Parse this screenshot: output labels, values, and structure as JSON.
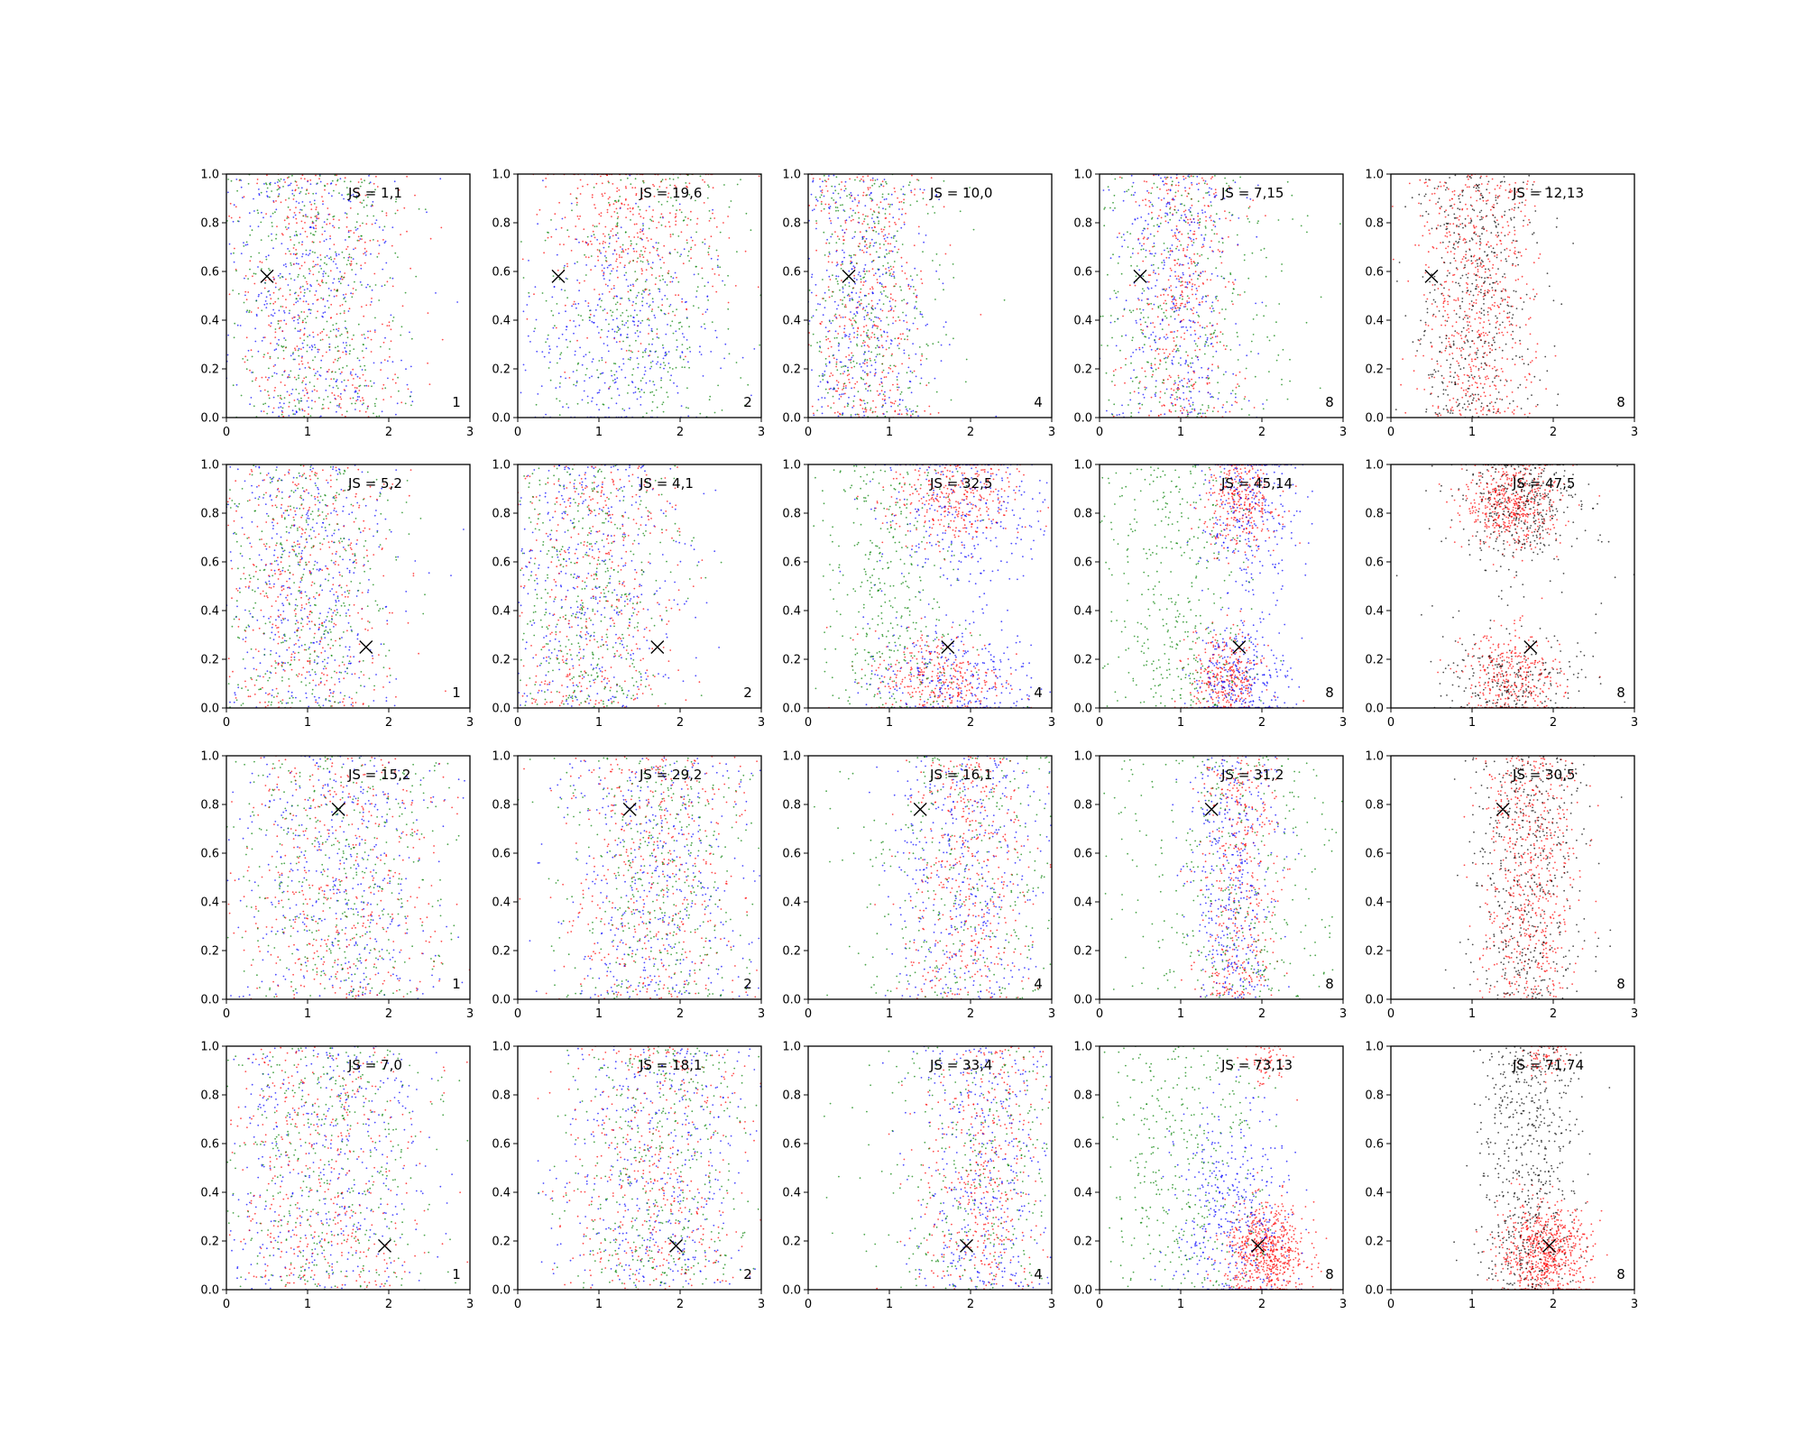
{
  "chart_data": {
    "type": "scatter",
    "rows": 4,
    "cols": 5,
    "xlim": [
      0,
      3
    ],
    "ylim": [
      0,
      1
    ],
    "x_ticks": [
      "0",
      "1",
      "2",
      "3"
    ],
    "y_ticks": [
      "0.0",
      "0.2",
      "0.4",
      "0.6",
      "0.8",
      "1.0"
    ],
    "grid": false,
    "series_colors": {
      "blue": "#0000ff",
      "red": "#ff0000",
      "green": "#008000",
      "black": "#000000"
    },
    "marker_symbol": "×",
    "panels": [
      {
        "js_label": "JS = 1,1",
        "corner_label": "1",
        "marker": [
          0.5,
          0.58
        ],
        "pattern": "diffuse",
        "cx": 1.05,
        "sx": 0.6
      },
      {
        "js_label": "JS = 19,6",
        "corner_label": "2",
        "marker": [
          0.5,
          0.58
        ],
        "pattern": "bands",
        "cx": 1.4,
        "sx": 0.6,
        "split": 0.5
      },
      {
        "js_label": "JS = 10,0",
        "corner_label": "4",
        "marker": [
          0.5,
          0.58
        ],
        "pattern": "column",
        "cx": 0.7,
        "sx": 0.4
      },
      {
        "js_label": "JS = 7,15",
        "corner_label": "8",
        "marker": [
          0.5,
          0.58
        ],
        "pattern": "column",
        "cx": 1.0,
        "sx": 0.35,
        "greenSpread": 0.7
      },
      {
        "js_label": "JS = 12,13",
        "corner_label": "8",
        "marker": [
          0.5,
          0.58
        ],
        "pattern": "column_rb",
        "cx": 1.05,
        "sx": 0.35
      },
      {
        "js_label": "JS = 5,2",
        "corner_label": "1",
        "marker": [
          1.72,
          0.25
        ],
        "pattern": "diffuse",
        "cx": 0.95,
        "sx": 0.55
      },
      {
        "js_label": "JS = 4,1",
        "corner_label": "2",
        "marker": [
          1.72,
          0.25
        ],
        "pattern": "diffuse",
        "cx": 0.9,
        "sx": 0.55
      },
      {
        "js_label": "JS = 32,5",
        "corner_label": "4",
        "marker": [
          1.72,
          0.25
        ],
        "pattern": "clusters",
        "cx": 1.6,
        "sx": 0.45
      },
      {
        "js_label": "JS = 45,14",
        "corner_label": "8",
        "marker": [
          1.72,
          0.25
        ],
        "pattern": "clusters",
        "cx": 1.55,
        "sx": 0.25
      },
      {
        "js_label": "JS = 47,5",
        "corner_label": "8",
        "marker": [
          1.72,
          0.25
        ],
        "pattern": "clusters_rb",
        "cx": 1.5,
        "sx": 0.3
      },
      {
        "js_label": "JS = 15,2",
        "corner_label": "1",
        "marker": [
          1.38,
          0.78
        ],
        "pattern": "diffuse",
        "cx": 1.4,
        "sx": 0.65
      },
      {
        "js_label": "JS = 29,2",
        "corner_label": "2",
        "marker": [
          1.38,
          0.78
        ],
        "pattern": "diffuse",
        "cx": 1.7,
        "sx": 0.6
      },
      {
        "js_label": "JS = 16,1",
        "corner_label": "4",
        "marker": [
          1.38,
          0.78
        ],
        "pattern": "column",
        "cx": 2.0,
        "sx": 0.4,
        "greenSpread": 0.8
      },
      {
        "js_label": "JS = 31,2",
        "corner_label": "8",
        "marker": [
          1.38,
          0.78
        ],
        "pattern": "column",
        "cx": 1.7,
        "sx": 0.25,
        "greenSpread": 0.7
      },
      {
        "js_label": "JS = 30,5",
        "corner_label": "8",
        "marker": [
          1.38,
          0.78
        ],
        "pattern": "column_rb",
        "cx": 1.7,
        "sx": 0.3
      },
      {
        "js_label": "JS = 7,0",
        "corner_label": "1",
        "marker": [
          1.95,
          0.18
        ],
        "pattern": "diffuse",
        "cx": 1.2,
        "sx": 0.65
      },
      {
        "js_label": "JS = 18,1",
        "corner_label": "2",
        "marker": [
          1.95,
          0.18
        ],
        "pattern": "diffuse",
        "cx": 1.7,
        "sx": 0.6
      },
      {
        "js_label": "JS = 33,4",
        "corner_label": "4",
        "marker": [
          1.95,
          0.18
        ],
        "pattern": "column",
        "cx": 2.2,
        "sx": 0.4,
        "greenSpread": 0.8
      },
      {
        "js_label": "JS = 73,13",
        "corner_label": "8",
        "marker": [
          1.95,
          0.18
        ],
        "pattern": "blob",
        "cx": 1.95,
        "sx": 0.3
      },
      {
        "js_label": "JS = 71,74",
        "corner_label": "8",
        "marker": [
          1.95,
          0.18
        ],
        "pattern": "blob_rb",
        "cx": 1.9,
        "sx": 0.3
      }
    ]
  }
}
